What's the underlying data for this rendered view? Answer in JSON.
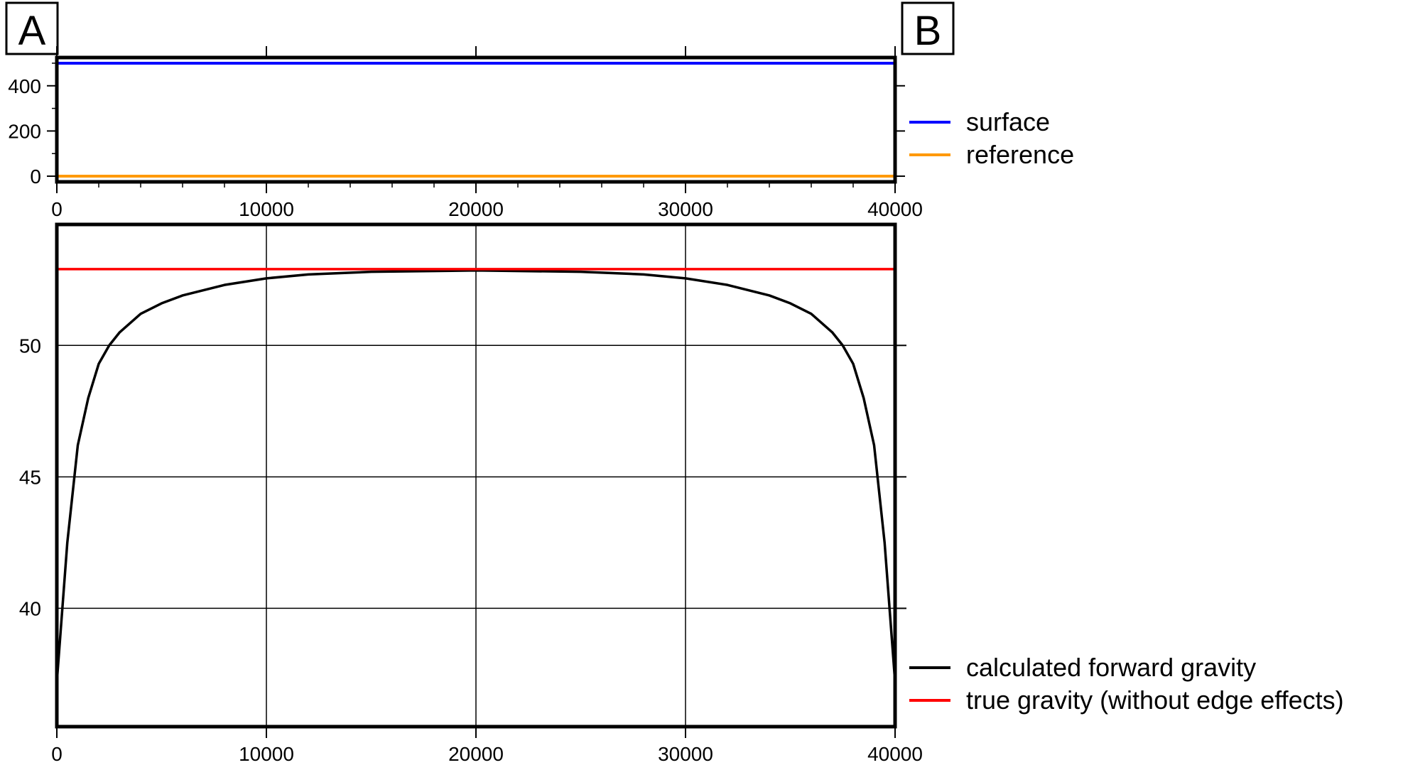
{
  "profile": {
    "start_label": "A",
    "end_label": "B"
  },
  "chart_data": [
    {
      "type": "line",
      "xlim": [
        0,
        40000
      ],
      "ylim": [
        -25,
        525
      ],
      "x_ticks": [
        0,
        10000,
        20000,
        30000,
        40000
      ],
      "y_ticks": [
        0,
        200,
        400
      ],
      "y_tick_labels": [
        "0",
        "200",
        "400"
      ],
      "grid": false,
      "legend": "right",
      "series": [
        {
          "name": "surface",
          "color": "#0000ff",
          "x": [
            0,
            40000
          ],
          "y": [
            500,
            500
          ]
        },
        {
          "name": "reference",
          "color": "#ff9900",
          "x": [
            0,
            40000
          ],
          "y": [
            0,
            0
          ]
        }
      ]
    },
    {
      "type": "line",
      "xlim": [
        0,
        40000
      ],
      "ylim": [
        35.5,
        54.6
      ],
      "x_ticks": [
        0,
        10000,
        20000,
        30000,
        40000
      ],
      "x_tick_labels": [
        "0",
        "10000",
        "20000",
        "30000",
        "40000"
      ],
      "y_ticks": [
        40,
        45,
        50
      ],
      "y_tick_labels": [
        "40",
        "45",
        "50"
      ],
      "grid": true,
      "legend": "bottom-right",
      "series": [
        {
          "name": "calculated forward gravity",
          "color": "#000000",
          "x": [
            0,
            500,
            1000,
            1500,
            2000,
            2500,
            3000,
            4000,
            5000,
            6000,
            7000,
            8000,
            10000,
            12000,
            15000,
            20000,
            25000,
            28000,
            30000,
            32000,
            33000,
            34000,
            35000,
            36000,
            37000,
            37500,
            38000,
            38500,
            39000,
            39500,
            40000
          ],
          "y": [
            37.2,
            42.5,
            46.2,
            48.0,
            49.3,
            50.0,
            50.5,
            51.2,
            51.6,
            51.9,
            52.1,
            52.3,
            52.55,
            52.7,
            52.8,
            52.85,
            52.8,
            52.7,
            52.55,
            52.3,
            52.1,
            51.9,
            51.6,
            51.2,
            50.5,
            50.0,
            49.3,
            48.0,
            46.2,
            42.5,
            37.2
          ]
        },
        {
          "name": "true gravity (without edge effects)",
          "color": "#ff0000",
          "x": [
            0,
            40000
          ],
          "y": [
            52.9,
            52.9
          ]
        }
      ]
    }
  ]
}
